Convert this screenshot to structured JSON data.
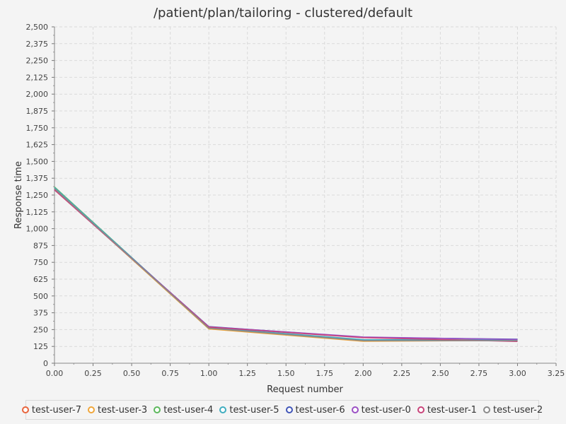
{
  "chart_data": {
    "type": "line",
    "title": "/patient/plan/tailoring - clustered/default",
    "xlabel": "Request number",
    "ylabel": "Response time",
    "xlim": [
      0,
      3.25
    ],
    "ylim": [
      0,
      2500
    ],
    "x_ticks": [
      "0.00",
      "0.25",
      "0.50",
      "0.75",
      "1.00",
      "1.25",
      "1.50",
      "1.75",
      "2.00",
      "2.25",
      "2.50",
      "2.75",
      "3.00",
      "3.25"
    ],
    "y_ticks": [
      "0",
      "125",
      "250",
      "375",
      "500",
      "625",
      "750",
      "875",
      "1,000",
      "1,125",
      "1,250",
      "1,375",
      "1,500",
      "1,625",
      "1,750",
      "1,875",
      "2,000",
      "2,125",
      "2,250",
      "2,375",
      "2,500"
    ],
    "grid": true,
    "legend_position": "bottom",
    "x": [
      0,
      1,
      2,
      3
    ],
    "series": [
      {
        "name": "test-user-7",
        "color": "#e8643c",
        "values": [
          1300,
          258,
          165,
          172
        ]
      },
      {
        "name": "test-user-3",
        "color": "#f0a63a",
        "values": [
          1295,
          255,
          163,
          170
        ]
      },
      {
        "name": "test-user-4",
        "color": "#5cb85c",
        "values": [
          1310,
          262,
          170,
          175
        ]
      },
      {
        "name": "test-user-5",
        "color": "#3fadc0",
        "values": [
          1305,
          265,
          175,
          172
        ]
      },
      {
        "name": "test-user-6",
        "color": "#4055b8",
        "values": [
          1290,
          272,
          192,
          178
        ]
      },
      {
        "name": "test-user-0",
        "color": "#9b4fc4",
        "values": [
          1292,
          270,
          195,
          176
        ]
      },
      {
        "name": "test-user-1",
        "color": "#c9447a",
        "values": [
          1288,
          268,
          190,
          162
        ]
      },
      {
        "name": "test-user-2",
        "color": "#8a8a8a",
        "values": [
          1298,
          260,
          168,
          168
        ]
      }
    ]
  }
}
